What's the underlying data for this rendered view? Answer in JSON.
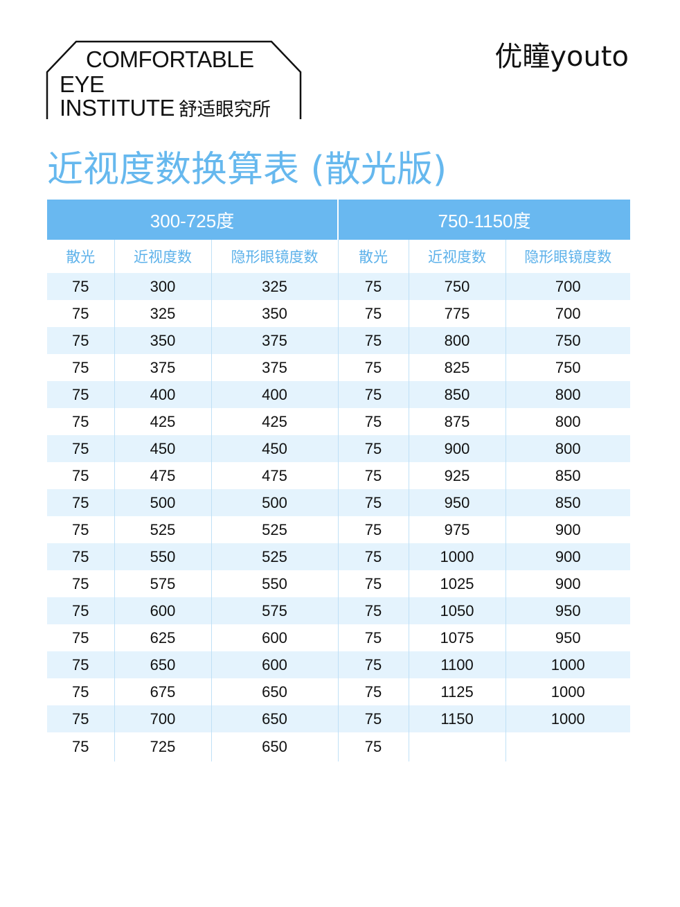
{
  "logo": {
    "line1": "COMFORTABLE",
    "line2": "EYE",
    "line3": "INSTITUTE",
    "line3_cn": "舒适眼究所"
  },
  "brand": "优瞳youto",
  "title": "近视度数换算表 (散光版)",
  "table": {
    "groups": [
      "300-725度",
      "750-1150度"
    ],
    "headers": [
      "散光",
      "近视度数",
      "隐形眼镜度数",
      "散光",
      "近视度数",
      "隐形眼镜度数"
    ],
    "rows": [
      [
        "75",
        "300",
        "325",
        "75",
        "750",
        "700"
      ],
      [
        "75",
        "325",
        "350",
        "75",
        "775",
        "700"
      ],
      [
        "75",
        "350",
        "375",
        "75",
        "800",
        "750"
      ],
      [
        "75",
        "375",
        "375",
        "75",
        "825",
        "750"
      ],
      [
        "75",
        "400",
        "400",
        "75",
        "850",
        "800"
      ],
      [
        "75",
        "425",
        "425",
        "75",
        "875",
        "800"
      ],
      [
        "75",
        "450",
        "450",
        "75",
        "900",
        "800"
      ],
      [
        "75",
        "475",
        "475",
        "75",
        "925",
        "850"
      ],
      [
        "75",
        "500",
        "500",
        "75",
        "950",
        "850"
      ],
      [
        "75",
        "525",
        "525",
        "75",
        "975",
        "900"
      ],
      [
        "75",
        "550",
        "525",
        "75",
        "1000",
        "900"
      ],
      [
        "75",
        "575",
        "550",
        "75",
        "1025",
        "900"
      ],
      [
        "75",
        "600",
        "575",
        "75",
        "1050",
        "950"
      ],
      [
        "75",
        "625",
        "600",
        "75",
        "1075",
        "950"
      ],
      [
        "75",
        "650",
        "600",
        "75",
        "1100",
        "1000"
      ],
      [
        "75",
        "675",
        "650",
        "75",
        "1125",
        "1000"
      ],
      [
        "75",
        "700",
        "650",
        "75",
        "1150",
        "1000"
      ],
      [
        "75",
        "725",
        "650",
        "75",
        "",
        ""
      ]
    ]
  },
  "colors": {
    "accent": "#66b8ee",
    "header_bg": "#69b8f0",
    "row_shade": "#e4f3fd"
  }
}
